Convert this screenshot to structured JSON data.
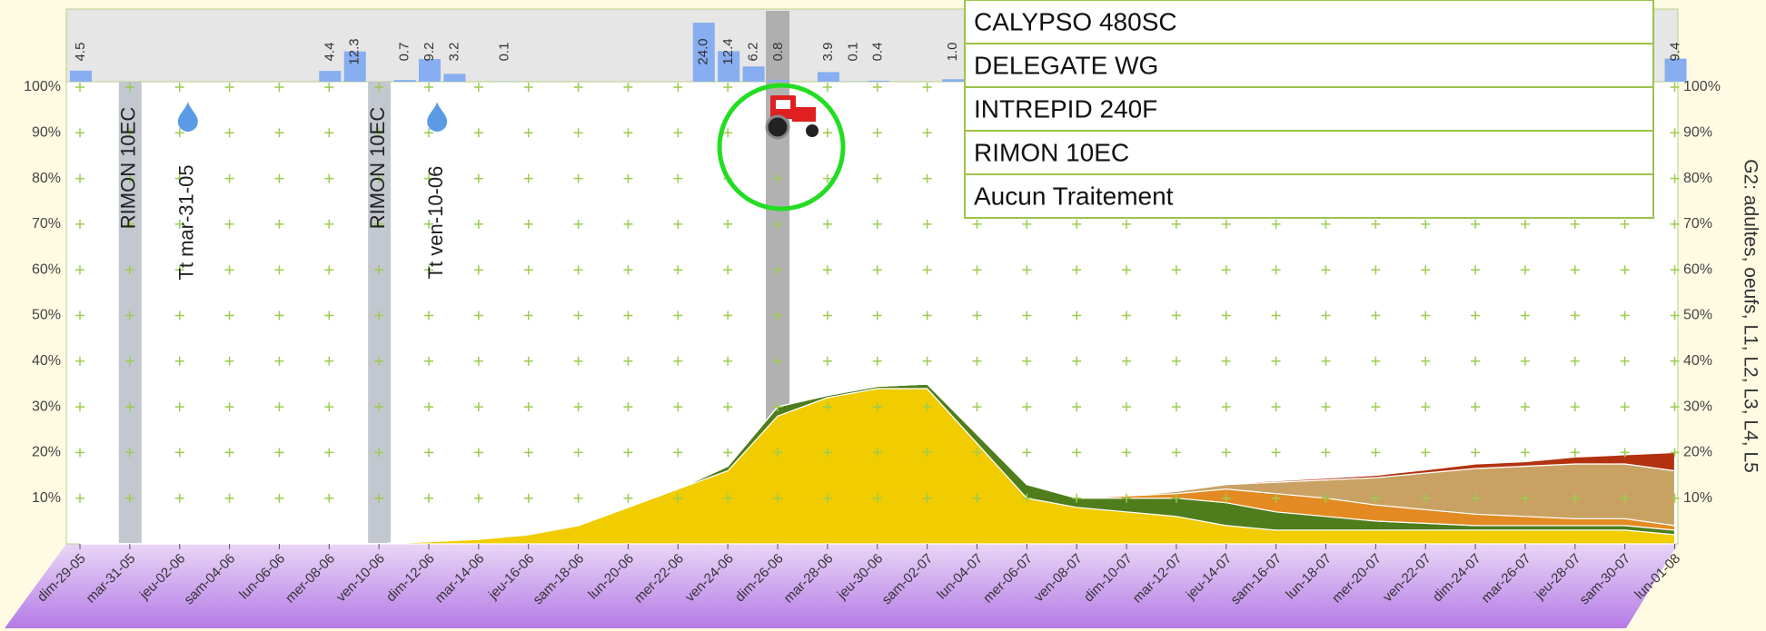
{
  "chart_data": {
    "type": "area",
    "categories": [
      "dim-29-05",
      "mar-31-05",
      "jeu-02-06",
      "sam-04-06",
      "lun-06-06",
      "mer-08-06",
      "ven-10-06",
      "dim-12-06",
      "mar-14-06",
      "jeu-16-06",
      "sam-18-06",
      "lun-20-06",
      "mer-22-06",
      "ven-24-06",
      "dim-26-06",
      "mar-28-06",
      "jeu-30-06",
      "sam-02-07",
      "lun-04-07",
      "mer-06-07",
      "ven-08-07",
      "dim-10-07",
      "mar-12-07",
      "jeu-14-07",
      "sam-16-07",
      "lun-18-07",
      "mer-20-07",
      "ven-22-07",
      "dim-24-07",
      "mar-26-07",
      "jeu-28-07",
      "sam-30-07",
      "lun-01-08"
    ],
    "series": [
      {
        "color": "#f0cc00",
        "values": [
          0,
          0,
          0,
          0,
          0,
          0,
          0,
          0.5,
          1,
          2,
          4,
          8,
          12,
          16,
          28,
          32,
          34,
          34,
          22,
          10,
          8,
          7,
          6,
          4,
          3,
          3,
          3,
          3,
          3,
          3,
          3,
          3,
          2
        ]
      },
      {
        "color": "#4f7d1c",
        "values": [
          0,
          0,
          0,
          0,
          0,
          0,
          0,
          0,
          0,
          0,
          0,
          0,
          0,
          1,
          2,
          0.5,
          0.5,
          1,
          2,
          3,
          2,
          3,
          4,
          5,
          4,
          3,
          2,
          1.5,
          1,
          1,
          1,
          1,
          1
        ]
      },
      {
        "color": "#e38b22",
        "values": [
          0,
          0,
          0,
          0,
          0,
          0,
          0,
          0,
          0,
          0,
          0,
          0,
          0,
          0,
          0,
          0,
          0,
          0,
          0,
          0,
          0,
          0.5,
          1,
          3,
          4,
          4,
          3.5,
          3,
          2.5,
          2,
          1.5,
          1.5,
          1
        ]
      },
      {
        "color": "#c9a263",
        "values": [
          0,
          0,
          0,
          0,
          0,
          0,
          0,
          0,
          0,
          0,
          0,
          0,
          0,
          0,
          0,
          0,
          0,
          0,
          0,
          0,
          0,
          0,
          0.5,
          1,
          2.5,
          4,
          6,
          8,
          10,
          11,
          12,
          12,
          12
        ]
      },
      {
        "color": "#b2320f",
        "values": [
          0,
          0,
          0,
          0,
          0,
          0,
          0,
          0,
          0,
          0,
          0,
          0,
          0,
          0,
          0,
          0,
          0,
          0,
          0,
          0,
          0,
          0,
          0,
          0.2,
          0.3,
          0.4,
          0.5,
          0.7,
          1,
          1,
          1.5,
          2,
          4
        ]
      }
    ],
    "ylim": [
      0,
      100
    ],
    "yticks": [
      {
        "value": 10,
        "label": "10%"
      },
      {
        "value": 20,
        "label": "20%"
      },
      {
        "value": 30,
        "label": "30%"
      },
      {
        "value": 40,
        "label": "40%"
      },
      {
        "value": 50,
        "label": "50%"
      },
      {
        "value": 60,
        "label": "60%"
      },
      {
        "value": 70,
        "label": "70%"
      },
      {
        "value": 80,
        "label": "80%"
      },
      {
        "value": 90,
        "label": "90%"
      },
      {
        "value": 100,
        "label": "100%"
      }
    ],
    "y_axis_label": "G2: adultes, oeufs, L1, L2, L3, L4, L5",
    "grid": true,
    "precipitation": {
      "color": "#86aef0",
      "ylim": [
        0,
        24
      ],
      "values": [
        4.5,
        null,
        null,
        null,
        null,
        null,
        null,
        null,
        null,
        null,
        4.4,
        12.3,
        null,
        0.7,
        9.2,
        3.2,
        null,
        0.1,
        null,
        null,
        null,
        null,
        null,
        null,
        null,
        24.0,
        12.4,
        6.2,
        0.8,
        null,
        3.9,
        0.1,
        0.4,
        null,
        null,
        1.0,
        null,
        null,
        null,
        null,
        null,
        null,
        null,
        null,
        null,
        null,
        null,
        null,
        null,
        null,
        null,
        null,
        null,
        null,
        null,
        null,
        null,
        null,
        null,
        null,
        null,
        null,
        null,
        null,
        9.4
      ],
      "value_labels": [
        "4.5",
        null,
        null,
        null,
        null,
        null,
        null,
        null,
        null,
        null,
        "4.4",
        "12.3",
        null,
        "0.7",
        "9.2",
        "3.2",
        null,
        "0.1",
        null,
        null,
        null,
        null,
        null,
        null,
        null,
        "24.0",
        "12.4",
        "6.2",
        "0.8",
        null,
        "3.9",
        "0.1",
        "0.4",
        null,
        null,
        "1.0",
        null,
        null,
        null,
        null,
        null,
        null,
        null,
        null,
        null,
        null,
        null,
        null,
        null,
        null,
        null,
        null,
        null,
        null,
        null,
        null,
        null,
        null,
        null,
        null,
        null,
        null,
        null,
        null,
        "9.4"
      ]
    },
    "treatments": [
      {
        "product": "RIMON 10EC",
        "note": "Tt mar-31-05",
        "date": "mar-31-05"
      },
      {
        "product": "RIMON 10EC",
        "note": "Tt ven-10-06",
        "date": "ven-10-06"
      }
    ],
    "tractor_date": "dim-26-06",
    "legend_items": [
      "CALYPSO 480SC",
      "DELEGATE WG",
      "INTREPID 240F",
      "RIMON 10EC",
      "Aucun Traitement"
    ]
  }
}
